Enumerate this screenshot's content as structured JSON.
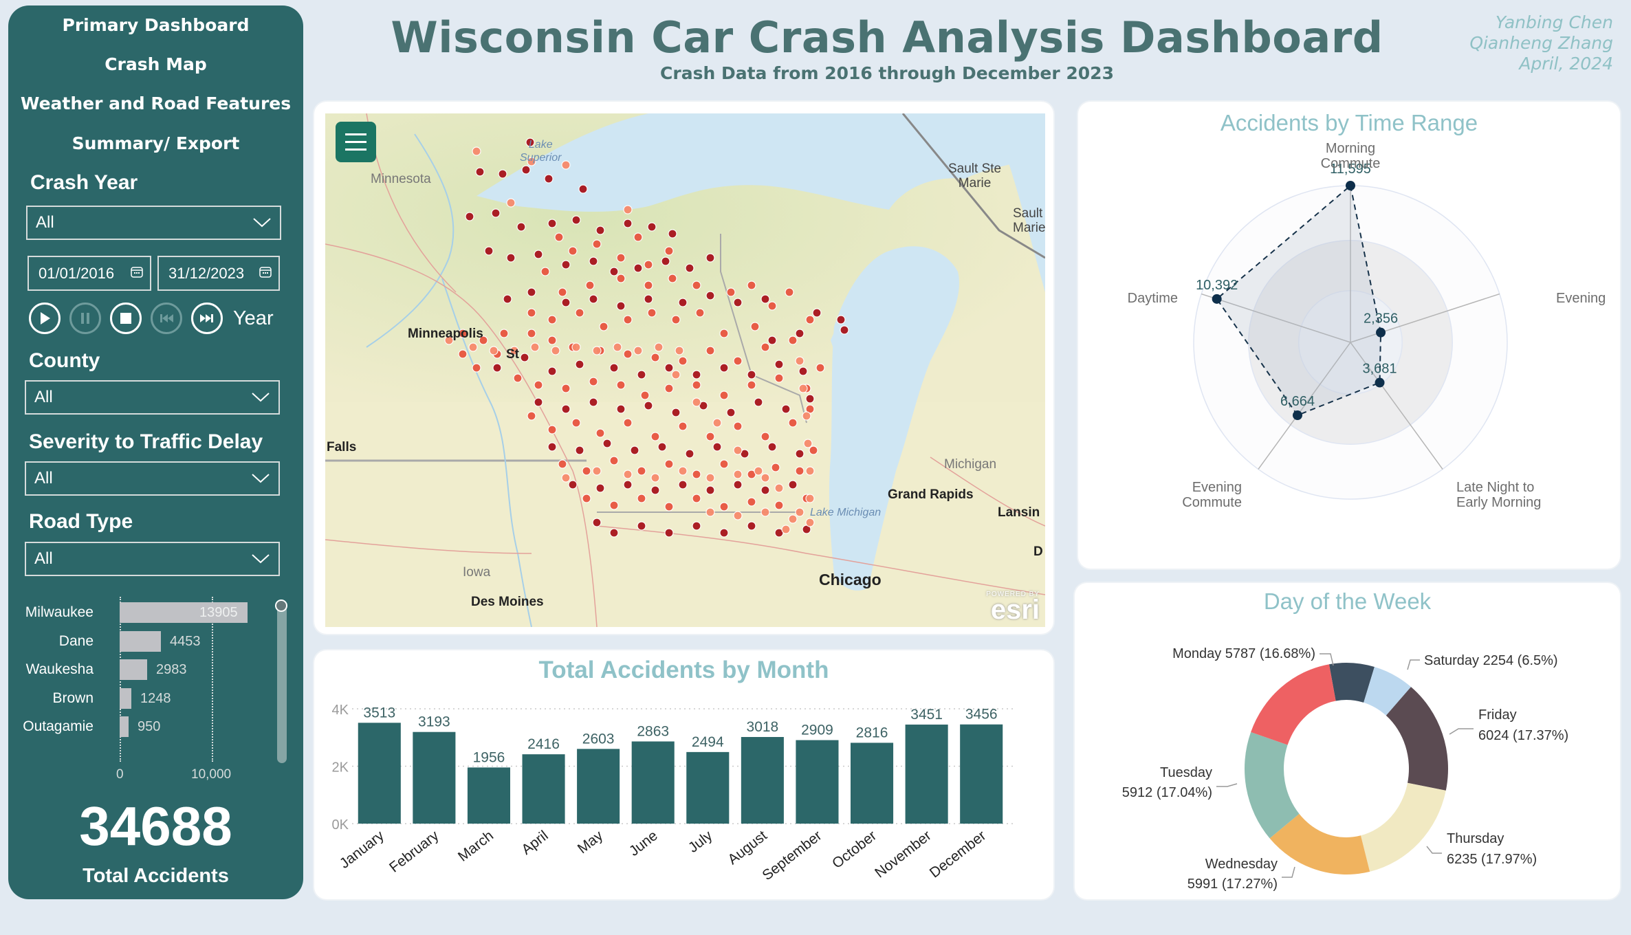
{
  "header": {
    "title": "Wisconsin Car Crash Analysis Dashboard",
    "subtitle": "Crash Data from 2016 through December 2023",
    "authors": [
      "Yanbing Chen",
      "Qianheng Zhang",
      "April, 2024"
    ]
  },
  "sidebar": {
    "nav": [
      "Primary Dashboard",
      "Crash Map",
      "Weather and Road Features",
      "Summary/ Export"
    ],
    "filters": {
      "crash_year": {
        "label": "Crash Year",
        "value": "All",
        "date_from": "01/01/2016",
        "date_to": "31/12/2023"
      },
      "playback": {
        "label": "Year",
        "buttons": [
          "play",
          "pause",
          "stop",
          "previous",
          "next"
        ]
      },
      "county": {
        "label": "County",
        "value": "All"
      },
      "severity": {
        "label": "Severity to Traffic Delay",
        "value": "All"
      },
      "road_type": {
        "label": "Road Type",
        "value": "All"
      }
    },
    "county_chart": {
      "axis": [
        "0",
        "10,000"
      ],
      "rows": [
        {
          "name": "Milwaukee",
          "value": "13905"
        },
        {
          "name": "Dane",
          "value": "4453"
        },
        {
          "name": "Waukesha",
          "value": "2983"
        },
        {
          "name": "Brown",
          "value": "1248"
        },
        {
          "name": "Outagamie",
          "value": "950"
        }
      ]
    },
    "kpi": {
      "value": "34688",
      "label": "Total Accidents"
    }
  },
  "map": {
    "labels": {
      "lake_superior": "Lake\nSuperior",
      "minnesota": "Minnesota",
      "sault1": "Sault Ste\nMarie",
      "sault2": "Sault\nMarie",
      "minneapolis": "Minneapolis",
      "st": "St",
      "falls": "Falls",
      "michigan": "Michigan",
      "grand_rapids": "Grand Rapids",
      "lake_michigan": "Lake Michigan",
      "lansing": "Lansin",
      "d": "D",
      "iowa": "Iowa",
      "chicago": "Chicago",
      "des_moines": "Des Moines"
    },
    "attribution": {
      "top": "POWERED BY",
      "brand": "esri"
    }
  },
  "month_chart": {
    "title": "Total Accidents by Month",
    "yticks": [
      "4K",
      "2K",
      "0K"
    ]
  },
  "radar_chart": {
    "title": "Accidents by Time Range",
    "axes": [
      "Morning\nCommute",
      "Evening",
      "Late Night to\nEarly Morning",
      "Evening\nCommute",
      "Daytime"
    ],
    "values_labels": [
      "11,595",
      "2,356",
      "3,681",
      "6,664",
      "10,392"
    ]
  },
  "donut_chart": {
    "title": "Day of the Week",
    "labels": {
      "monday": "Monday 5787 (16.68%)",
      "saturday": "Saturday 2254 (6.5%)",
      "friday_1": "Friday",
      "friday_2": "6024 (17.37%)",
      "thursday_1": "Thursday",
      "thursday_2": "6235 (17.97%)",
      "wednesday_1": "Wednesday",
      "wednesday_2": "5991 (17.27%)",
      "tuesday_1": "Tuesday",
      "tuesday_2": "5912 (17.04%)"
    }
  },
  "colors": {
    "sidebar": "#2c6769",
    "bar": "#2c6769",
    "title": "#4a7272",
    "chart_title": "#8fc2c8",
    "background": "#e2eaf2"
  },
  "chart_data": [
    {
      "type": "bar",
      "title": "Total Accidents by Month",
      "categories": [
        "January",
        "February",
        "March",
        "April",
        "May",
        "June",
        "July",
        "August",
        "September",
        "October",
        "November",
        "December"
      ],
      "values": [
        3513,
        3193,
        1956,
        2416,
        2603,
        2863,
        2494,
        3018,
        2909,
        2816,
        3451,
        3456
      ],
      "xlabel": "",
      "ylabel": "",
      "ylim": [
        0,
        4000
      ],
      "yticks": [
        "0K",
        "2K",
        "4K"
      ],
      "grid": true
    },
    {
      "type": "bar",
      "orientation": "horizontal",
      "title": "Accidents by County",
      "categories": [
        "Milwaukee",
        "Dane",
        "Waukesha",
        "Brown",
        "Outagamie"
      ],
      "values": [
        13905,
        4453,
        2983,
        1248,
        950
      ],
      "xticks": [
        "0",
        "10,000"
      ],
      "grid": true
    },
    {
      "type": "radar",
      "title": "Accidents by Time Range",
      "categories": [
        "Morning Commute",
        "Evening",
        "Late Night to Early Morning",
        "Evening Commute",
        "Daytime"
      ],
      "values": [
        11595,
        2356,
        3681,
        6664,
        10392
      ]
    },
    {
      "type": "pie",
      "title": "Day of the Week",
      "donut": true,
      "categories": [
        "Sunday (unlabeled)",
        "Saturday",
        "Friday",
        "Thursday",
        "Wednesday",
        "Tuesday",
        "Monday"
      ],
      "values": [
        2485,
        2254,
        6024,
        6235,
        5991,
        5912,
        5787
      ],
      "percent": [
        7.16,
        6.5,
        17.37,
        17.97,
        17.27,
        17.04,
        16.68
      ],
      "colors": [
        "#3d4f60",
        "#bcd8ef",
        "#5b4b52",
        "#f1e9c2",
        "#f0b35f",
        "#8ebdb1",
        "#ee6163"
      ]
    }
  ]
}
